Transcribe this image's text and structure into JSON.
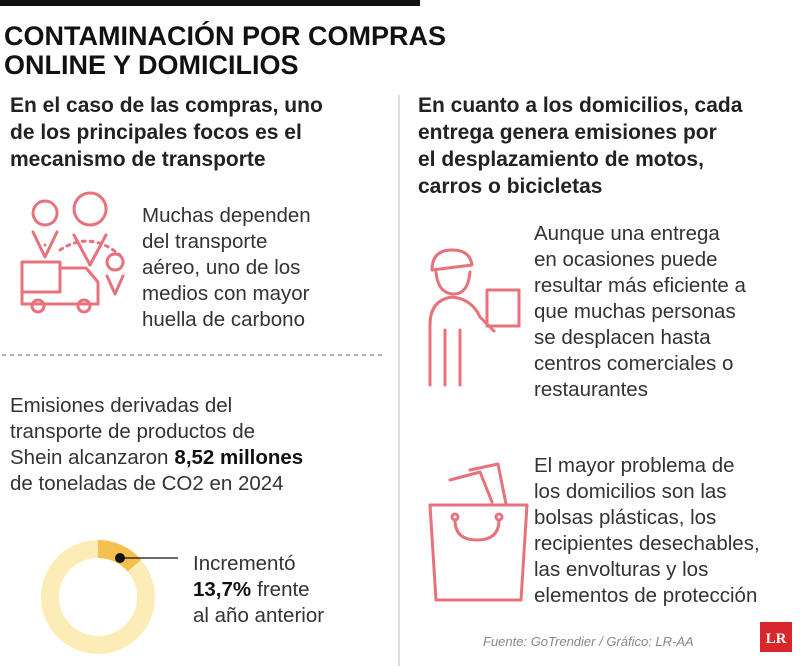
{
  "header": {
    "title_lines": [
      "CONTAMINACIÓN POR COMPRAS",
      "ONLINE Y DOMICILIOS"
    ]
  },
  "left": {
    "subtitle_lines": [
      "En el caso de las compras, uno",
      "de los principales focos es el",
      "mecanismo de transporte"
    ],
    "transport_lines": [
      "Muchas dependen",
      "del transporte",
      "aéreo, uno de los",
      "medios con mayor",
      "huella de carbono"
    ],
    "emissions": {
      "lines": [
        "Emisiones derivadas del",
        "transporte de productos de",
        "Shein alcanzaron"
      ],
      "highlight": "8,52 millones",
      "last_line": "de toneladas de CO2 en 2024"
    },
    "increase": {
      "label": "Incrementó",
      "value_label": "13,7%",
      "after": "frente",
      "last": "al año anterior",
      "value": 13.7
    }
  },
  "right": {
    "subtitle_lines": [
      "En cuanto a los domicilios, cada",
      "entrega genera emisiones por",
      "el desplazamiento de motos,",
      "carros o bicicletas"
    ],
    "delivery_lines": [
      "Aunque una entrega",
      "en ocasiones puede",
      "resultar más eficiente a",
      "que muchas personas",
      "se desplacen hasta",
      "centros comerciales o",
      "restaurantes"
    ],
    "bags_lines": [
      "El mayor problema de",
      "los domicilios son las",
      "bolsas plásticas, los",
      "recipientes desechables,",
      "las envolturas y los",
      "elementos de protección"
    ]
  },
  "footer": {
    "source": "Fuente: GoTrendier / Gráfico: LR-AA",
    "logo": "LR"
  }
}
